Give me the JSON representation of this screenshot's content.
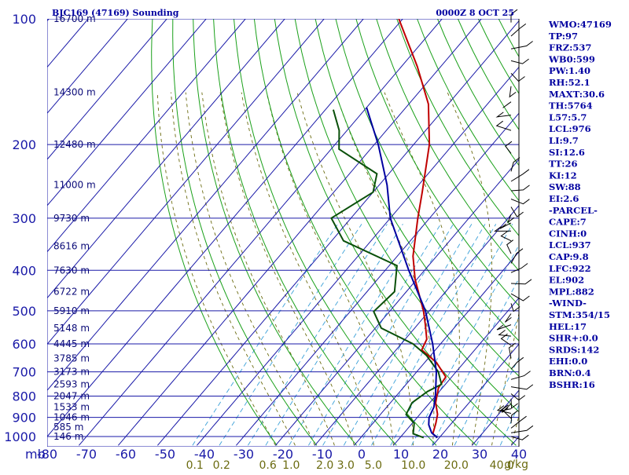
{
  "chart_data": {
    "type": "skew-t log-p sounding",
    "title": "BJC169 (47169) Sounding",
    "time": "0000Z  8 OCT 25",
    "y_unit": "mb",
    "pressure_ticks": [
      100,
      200,
      300,
      400,
      500,
      600,
      700,
      800,
      900,
      1000
    ],
    "temperature_ticks": [
      -80,
      -70,
      -60,
      -50,
      -40,
      -30,
      -20,
      -10,
      0,
      10,
      20,
      30,
      40
    ],
    "temperature_tick_labels": [
      "-80",
      "-70",
      "-60",
      "-50",
      "-40",
      "-30",
      "-20",
      "-10",
      "0",
      "10",
      "20",
      "30",
      "40"
    ],
    "mixing_ratio_labels": [
      "0.1",
      "0.2",
      "0.6",
      "1.0",
      "2.0",
      "3.0",
      "5.0",
      "10.0",
      "20.0",
      "40.0"
    ],
    "mixing_ratio_unit": "g/kg",
    "height_labels": [
      {
        "p": 100,
        "h": "16700 m"
      },
      {
        "p": 150,
        "h": "14300 m"
      },
      {
        "p": 200,
        "h": "12480 m"
      },
      {
        "p": 250,
        "h": "11000 m"
      },
      {
        "p": 300,
        "h": "9730 m"
      },
      {
        "p": 350,
        "h": "8616 m"
      },
      {
        "p": 400,
        "h": "7630 m"
      },
      {
        "p": 450,
        "h": "6722 m"
      },
      {
        "p": 500,
        "h": "5910 m"
      },
      {
        "p": 550,
        "h": "5148 m"
      },
      {
        "p": 600,
        "h": "4445 m"
      },
      {
        "p": 650,
        "h": "3785 m"
      },
      {
        "p": 700,
        "h": "3173 m"
      },
      {
        "p": 750,
        "h": "2593 m"
      },
      {
        "p": 800,
        "h": "2047 m"
      },
      {
        "p": 850,
        "h": "1533 m"
      },
      {
        "p": 900,
        "h": "1046 m"
      },
      {
        "p": 950,
        "h": "585 m"
      },
      {
        "p": 1000,
        "h": "146 m"
      }
    ],
    "series": [
      {
        "name": "Temperature",
        "color": "#c00000",
        "points": [
          [
            1006,
            19.5
          ],
          [
            985,
            17.5
          ],
          [
            930,
            16.0
          ],
          [
            885,
            14.5
          ],
          [
            830,
            11.5
          ],
          [
            765,
            9.0
          ],
          [
            720,
            8.5
          ],
          [
            665,
            3.0
          ],
          [
            620,
            -3.5
          ],
          [
            585,
            -4.5
          ],
          [
            540,
            -8.0
          ],
          [
            500,
            -11.5
          ],
          [
            420,
            -20.5
          ],
          [
            370,
            -26.0
          ],
          [
            300,
            -33.0
          ],
          [
            260,
            -37.5
          ],
          [
            200,
            -46.0
          ],
          [
            160,
            -55.0
          ],
          [
            130,
            -66.0
          ],
          [
            100,
            -81.0
          ]
        ]
      },
      {
        "name": "Dew point",
        "color": "#0a500a",
        "points": [
          [
            1006,
            16.0
          ],
          [
            985,
            12.5
          ],
          [
            930,
            10.5
          ],
          [
            885,
            6.5
          ],
          [
            830,
            5.5
          ],
          [
            780,
            7.0
          ],
          [
            750,
            9.0
          ],
          [
            700,
            5.5
          ],
          [
            640,
            -1.0
          ],
          [
            600,
            -7.0
          ],
          [
            550,
            -18.5
          ],
          [
            502,
            -24.0
          ],
          [
            450,
            -23.0
          ],
          [
            390,
            -28.0
          ],
          [
            340,
            -47.0
          ],
          [
            300,
            -55.0
          ],
          [
            260,
            -50.0
          ],
          [
            235,
            -53.0
          ],
          [
            205,
            -68.0
          ],
          [
            185,
            -72.0
          ],
          [
            165,
            -78.0
          ]
        ]
      },
      {
        "name": "Parcel",
        "color": "#0000a0",
        "points": [
          [
            1006,
            19.5
          ],
          [
            980,
            17.0
          ],
          [
            937,
            14.5
          ],
          [
            900,
            13.0
          ],
          [
            850,
            12.0
          ],
          [
            800,
            10.0
          ],
          [
            700,
            5.0
          ],
          [
            600,
            -2.0
          ],
          [
            500,
            -11.0
          ],
          [
            400,
            -24.0
          ],
          [
            300,
            -40.0
          ],
          [
            250,
            -48.0
          ],
          [
            200,
            -59.0
          ],
          [
            163,
            -70.0
          ]
        ]
      }
    ],
    "wind_barbs_levels_mb": [
      102,
      110,
      118,
      126,
      135,
      145,
      158,
      170,
      185,
      210,
      232,
      245,
      258,
      270,
      282,
      294,
      308,
      322,
      340,
      365,
      385,
      405,
      430,
      455,
      480,
      508,
      540,
      575,
      605,
      650,
      690,
      730,
      760,
      790,
      812,
      835,
      858,
      880,
      905,
      930,
      955,
      980,
      1000
    ],
    "indices": [
      "WMO:47169",
      "TP:97",
      "FRZ:537",
      "WB0:599",
      "PW:1.40",
      "RH:52.1",
      "MAXT:30.6",
      "TH:5764",
      "L57:5.7",
      "LCL:976",
      "LI:9.7",
      "SI:12.6",
      "TT:26",
      "KI:12",
      "SW:88",
      "EI:2.6",
      "-PARCEL-",
      "CAPE:7",
      "CINH:0",
      "LCL:937",
      "CAP:9.8",
      "LFC:922",
      "EL:902",
      "MPL:882",
      "-WIND-",
      "STM:354/15",
      "HEL:17",
      "SHR+:0.0",
      "SRDS:142",
      "EHI:0.0",
      "BRN:0.4",
      "BSHR:16"
    ],
    "colors": {
      "grid": "#1a1aa8",
      "dry_adiabat": "#1aa01a",
      "moist_adiabat": "#6b6b10",
      "mixing_ratio": "#3aa0d8",
      "title": "#0000a0"
    }
  }
}
